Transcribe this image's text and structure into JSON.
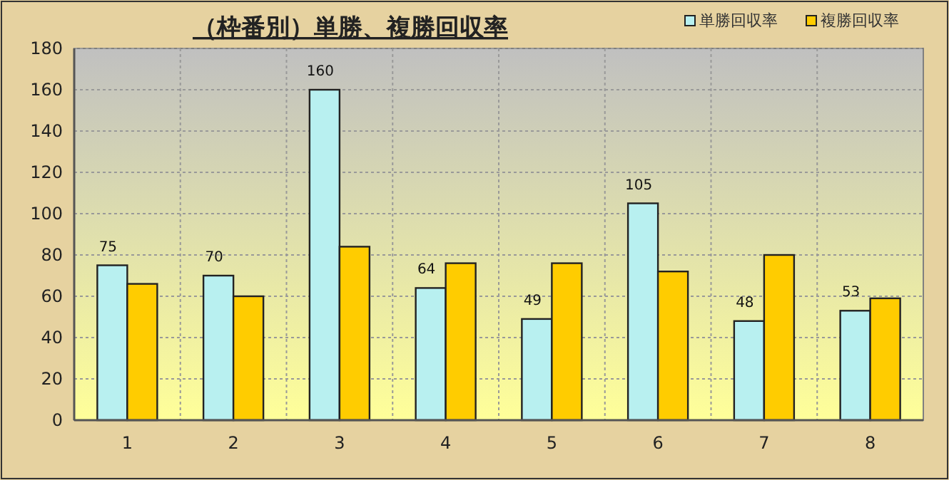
{
  "chart_data": {
    "type": "bar",
    "title": "（枠番別）単勝、複勝回収率",
    "categories": [
      "1",
      "2",
      "3",
      "4",
      "5",
      "6",
      "7",
      "8"
    ],
    "series": [
      {
        "name": "単勝回収率",
        "color": "#b8f0f0",
        "values": [
          75,
          70,
          160,
          64,
          49,
          105,
          48,
          53
        ],
        "value_labels": [
          "75",
          "70",
          "160",
          "64",
          "49",
          "105",
          "48",
          "53"
        ]
      },
      {
        "name": "複勝回収率",
        "color": "#ffcc00",
        "values": [
          66,
          60,
          84,
          76,
          76,
          72,
          80,
          59
        ]
      }
    ],
    "ylim": [
      0,
      180
    ],
    "yticks": [
      0,
      20,
      40,
      60,
      80,
      100,
      120,
      140,
      160,
      180
    ],
    "grid": true,
    "legend": "top right"
  }
}
